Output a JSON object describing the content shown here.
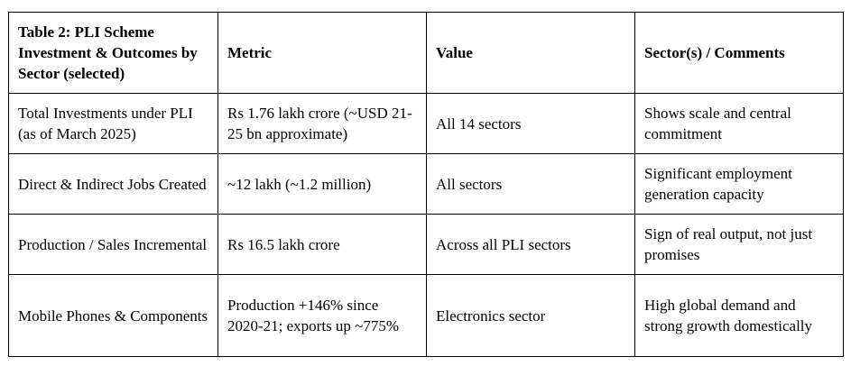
{
  "table": {
    "headers": [
      "Table 2: PLI Scheme Investment & Outcomes by Sector (selected)",
      "Metric",
      "Value",
      "Sector(s) / Comments"
    ],
    "rows": [
      [
        "Total Investments under PLI (as of March 2025)",
        "Rs 1.76 lakh crore (~USD 21-25 bn approximate)",
        "All 14 sectors",
        "Shows scale and central commitment"
      ],
      [
        "Direct & Indirect Jobs Created",
        "~12 lakh (~1.2 million)",
        "All sectors",
        "Significant employment generation capacity"
      ],
      [
        "Production / Sales Incremental",
        "Rs 16.5 lakh crore",
        "Across all PLI sectors",
        "Sign of real output, not just promises"
      ],
      [
        "Mobile Phones & Components",
        "Production +146% since 2020-21; exports up ~775%",
        "Electronics sector",
        "High global demand and strong growth domestically"
      ]
    ]
  }
}
